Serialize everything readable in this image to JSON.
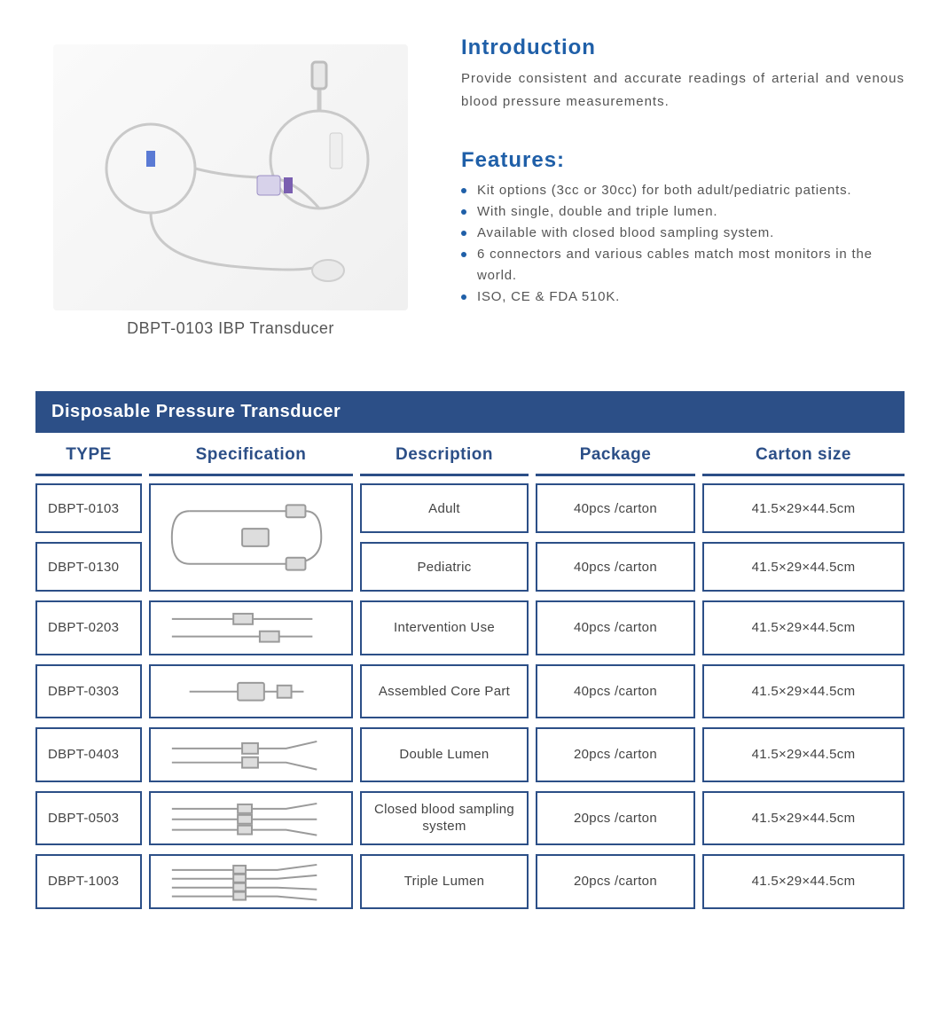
{
  "colors": {
    "heading": "#1f5fa8",
    "bullet": "#1f5fa8",
    "titleBar": "#2c4f87",
    "headerText": "#2c4f87",
    "headerBorder": "#2c4f87",
    "cellBorder": "#2c4f87",
    "bodyText": "#555555"
  },
  "product": {
    "caption": "DBPT-0103 IBP Transducer"
  },
  "intro": {
    "heading": "Introduction",
    "text": "Provide consistent and accurate readings of arterial and venous blood pressure measurements."
  },
  "features": {
    "heading": "Features:",
    "items": [
      "Kit options (3cc or 30cc) for both adult/pediatric patients.",
      "With single, double and triple lumen.",
      "Available with closed blood sampling system.",
      "6 connectors and various cables match most monitors in the world.",
      "ISO, CE & FDA 510K."
    ]
  },
  "table": {
    "title": "Disposable Pressure Transducer",
    "headers": {
      "type": "TYPE",
      "spec": "Specification",
      "desc": "Description",
      "pkg": "Package",
      "size": "Carton  size"
    },
    "mergedBlock": {
      "types": [
        "DBPT-0103",
        "DBPT-0130"
      ],
      "rows": [
        {
          "desc": "Adult",
          "pkg": "40pcs /carton",
          "size": "41.5×29×44.5cm"
        },
        {
          "desc": "Pediatric",
          "pkg": "40pcs /carton",
          "size": "41.5×29×44.5cm"
        }
      ]
    },
    "rows": [
      {
        "type": "DBPT-0203",
        "desc": "Intervention Use",
        "pkg": "40pcs /carton",
        "size": "41.5×29×44.5cm"
      },
      {
        "type": "DBPT-0303",
        "desc": "Assembled Core Part",
        "pkg": "40pcs /carton",
        "size": "41.5×29×44.5cm"
      },
      {
        "type": "DBPT-0403",
        "desc": "Double Lumen",
        "pkg": "20pcs /carton",
        "size": "41.5×29×44.5cm"
      },
      {
        "type": "DBPT-0503",
        "desc": "Closed blood sampling system",
        "pkg": "20pcs /carton",
        "size": "41.5×29×44.5cm"
      },
      {
        "type": "DBPT-1003",
        "desc": "Triple Lumen",
        "pkg": "20pcs /carton",
        "size": "41.5×29×44.5cm"
      }
    ]
  }
}
